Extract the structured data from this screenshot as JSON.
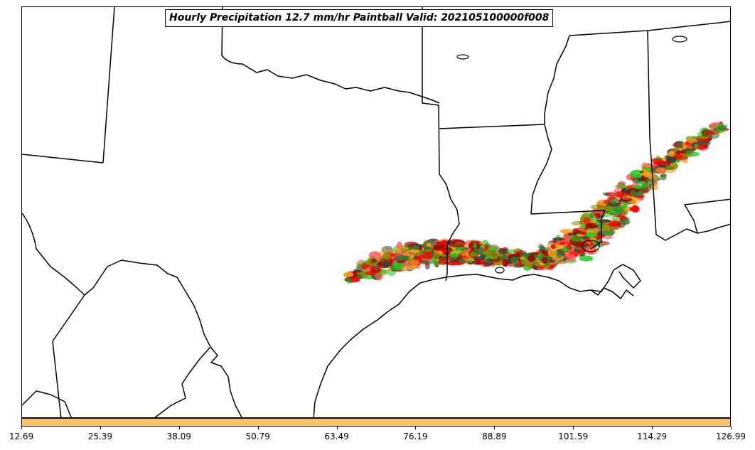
{
  "title": "Hourly Precipitation 12.7 mm/hr Paintball Valid: 202105100000f008",
  "colorbar": {
    "color": "#ffc266",
    "ticks": [
      "12.69",
      "25.39",
      "38.09",
      "50.79",
      "63.49",
      "76.19",
      "88.89",
      "101.59",
      "114.29",
      "126.99"
    ]
  },
  "colors": {
    "boundary": "#000000",
    "paintball_members": [
      "#ff9f1c",
      "#ff0000",
      "#9e0000",
      "#22cc22",
      "#8c8c00",
      "#3a3a3a",
      "#ff5555",
      "#2e7d32"
    ]
  }
}
